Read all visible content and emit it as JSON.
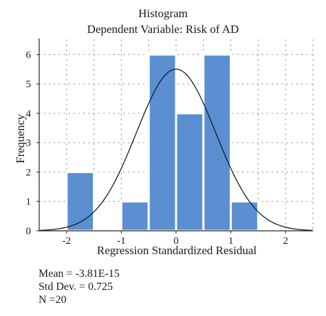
{
  "chart_data": {
    "type": "bar",
    "title": "Histogram",
    "subtitle": "Dependent Variable: Risk of AD",
    "xlabel": "Regression Standardized Residual",
    "ylabel": "Frequency",
    "bins": [
      {
        "from": -2.0,
        "to": -1.5,
        "value": 2
      },
      {
        "from": -1.0,
        "to": -0.5,
        "value": 1
      },
      {
        "from": -0.5,
        "to": 0.0,
        "value": 6
      },
      {
        "from": 0.0,
        "to": 0.5,
        "value": 4
      },
      {
        "from": 0.5,
        "to": 1.0,
        "value": 6
      },
      {
        "from": 1.0,
        "to": 1.5,
        "value": 1
      }
    ],
    "xlim": [
      -2.5,
      2.5
    ],
    "ylim": [
      0,
      6.5
    ],
    "xticks": [
      -2,
      -1,
      0,
      1,
      2
    ],
    "yticks": [
      0,
      1,
      2,
      3,
      4,
      5,
      6
    ],
    "grid": true,
    "normal_curve": {
      "mean": -3.81e-15,
      "std": 0.725,
      "n": 20,
      "bin_width": 0.5
    },
    "bar_color": "#5b8fd2",
    "curve_color": "#1a1a1a",
    "stats": {
      "mean_text": "Mean = -3.81E-15",
      "std_text": "Std Dev. = 0.725",
      "n_text": "N =20"
    }
  }
}
